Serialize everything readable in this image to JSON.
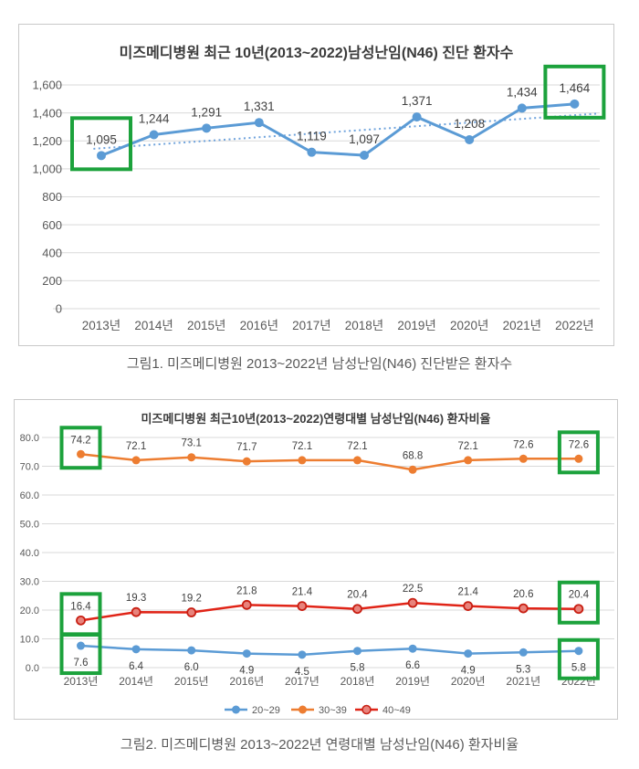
{
  "chart_data": [
    {
      "type": "line",
      "title": "미즈메디병원 최근 10년(2013~2022)남성난임(N46) 진단 환자수",
      "caption": "그림1. 미즈메디병원 2013~2022년 남성난임(N46) 진단받은 환자수",
      "categories": [
        "2013년",
        "2014년",
        "2015년",
        "2016년",
        "2017년",
        "2018년",
        "2019년",
        "2020년",
        "2021년",
        "2022년"
      ],
      "series": [
        {
          "name": "진단 환자수",
          "color": "#5b9bd5",
          "values": [
            1095,
            1244,
            1291,
            1331,
            1119,
            1097,
            1371,
            1208,
            1434,
            1464
          ],
          "labels": [
            "1,095",
            "1,244",
            "1,291",
            "1,331",
            "1,119",
            "1,097",
            "1,371",
            "1,208",
            "1,434",
            "1,464"
          ],
          "label_position": "above"
        }
      ],
      "trendline": {
        "style": "dotted",
        "color": "#6fa3dc"
      },
      "ylim": [
        0,
        1600
      ],
      "yticks": [
        "0",
        "200",
        "400",
        "600",
        "800",
        "1,000",
        "1,200",
        "1,400",
        "1,600"
      ],
      "grid": true,
      "legend_position": "none",
      "highlights": [
        {
          "series": 0,
          "index": 0
        },
        {
          "series": 0,
          "index": 9
        }
      ],
      "highlight_color": "#1ca23c",
      "grid_color": "#d9d9d9",
      "axis_text_color": "#595959",
      "label_text_color": "#404040"
    },
    {
      "type": "line",
      "title": "미즈메디병원 최근10년(2013~2022)연령대별 남성난임(N46) 환자비율",
      "caption": "그림2. 미즈메디병원 2013~2022년 연령대별 남성난임(N46) 환자비율",
      "categories": [
        "2013년",
        "2014년",
        "2015년",
        "2016년",
        "2017년",
        "2018년",
        "2019년",
        "2020년",
        "2021년",
        "2022년"
      ],
      "series": [
        {
          "name": "20~29",
          "color": "#5b9bd5",
          "values": [
            7.6,
            6.4,
            6.0,
            4.9,
            4.5,
            5.8,
            6.6,
            4.9,
            5.3,
            5.8
          ],
          "labels": [
            "7.6",
            "6.4",
            "6.0",
            "4.9",
            "4.5",
            "5.8",
            "6.6",
            "4.9",
            "5.3",
            "5.8"
          ],
          "label_position": "below"
        },
        {
          "name": "30~39",
          "color": "#ed7d31",
          "values": [
            74.2,
            72.1,
            73.1,
            71.7,
            72.1,
            72.1,
            68.8,
            72.1,
            72.6,
            72.6
          ],
          "labels": [
            "74.2",
            "72.1",
            "73.1",
            "71.7",
            "72.1",
            "72.1",
            "68.8",
            "72.1",
            "72.6",
            "72.6"
          ],
          "label_position": "above"
        },
        {
          "name": "40~49",
          "color": "#e02417",
          "marker_fill": "#e8837c",
          "marker_stroke": "#c81e12",
          "values": [
            16.4,
            19.3,
            19.2,
            21.8,
            21.4,
            20.4,
            22.5,
            21.4,
            20.6,
            20.4
          ],
          "labels": [
            "16.4",
            "19.3",
            "19.2",
            "21.8",
            "21.4",
            "20.4",
            "22.5",
            "21.4",
            "20.6",
            "20.4"
          ],
          "label_position": "above"
        }
      ],
      "ylim": [
        0,
        80
      ],
      "yticks": [
        "0.0",
        "10.0",
        "20.0",
        "30.0",
        "40.0",
        "50.0",
        "60.0",
        "70.0",
        "80.0"
      ],
      "grid": true,
      "legend_position": "bottom",
      "highlights": [
        {
          "series": 1,
          "index": 0
        },
        {
          "series": 1,
          "index": 9
        },
        {
          "series": 2,
          "index": 0
        },
        {
          "series": 2,
          "index": 9
        },
        {
          "series": 0,
          "index": 0
        },
        {
          "series": 0,
          "index": 9
        }
      ],
      "highlight_color": "#1ca23c",
      "grid_color": "#d9d9d9",
      "axis_text_color": "#595959",
      "label_text_color": "#404040"
    }
  ]
}
